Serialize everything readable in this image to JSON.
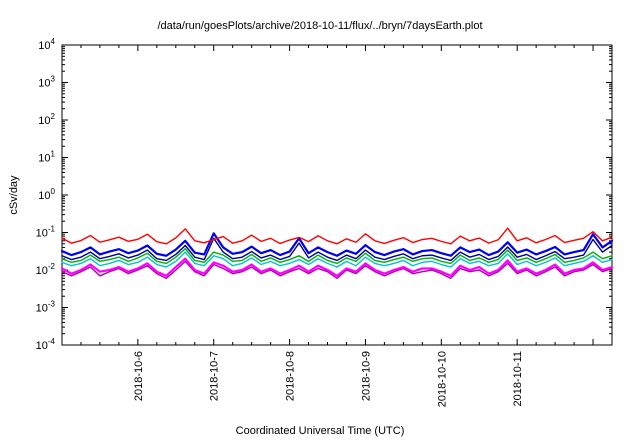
{
  "page": {
    "background": "#ffffff"
  },
  "chart_data": {
    "type": "line",
    "title": "/data/run/goesPlots/archive/2018-10-11/flux/../bryn/7daysEarth.plot",
    "xlabel": "Coordinated Universal Time (UTC)",
    "ylabel": "cSv/day",
    "y_scale": "log10",
    "ylim": [
      0.0001,
      10000
    ],
    "y_tick_exponents": [
      -4,
      -3,
      -2,
      -1,
      0,
      1,
      2,
      3,
      4
    ],
    "grid": false,
    "legend": "none",
    "xlim_days": [
      0,
      7.25
    ],
    "x_ticks": [
      {
        "day": 1,
        "label": "2018-10-6"
      },
      {
        "day": 2,
        "label": "2018-10-7"
      },
      {
        "day": 3,
        "label": "2018-10-8"
      },
      {
        "day": 4,
        "label": "2018-10-9"
      },
      {
        "day": 5,
        "label": "2018-10-10"
      },
      {
        "day": 6,
        "label": "2018-10-11"
      }
    ],
    "x_days": [
      0,
      0.125,
      0.25,
      0.375,
      0.5,
      0.625,
      0.75,
      0.875,
      1,
      1.125,
      1.25,
      1.375,
      1.5,
      1.625,
      1.75,
      1.875,
      2,
      2.125,
      2.25,
      2.375,
      2.5,
      2.625,
      2.75,
      2.875,
      3,
      3.125,
      3.25,
      3.375,
      3.5,
      3.625,
      3.75,
      3.875,
      4,
      4.125,
      4.25,
      4.375,
      4.5,
      4.625,
      4.75,
      4.875,
      5,
      5.125,
      5.25,
      5.375,
      5.5,
      5.625,
      5.75,
      5.875,
      6,
      6.125,
      6.25,
      6.375,
      6.5,
      6.625,
      6.75,
      6.875,
      7,
      7.125,
      7.25
    ],
    "series": [
      {
        "name": "green",
        "color": "#00b000",
        "width": 1.4,
        "values": [
          0.02,
          0.016,
          0.018,
          0.025,
          0.017,
          0.019,
          0.022,
          0.017,
          0.021,
          0.028,
          0.017,
          0.015,
          0.022,
          0.037,
          0.018,
          0.016,
          0.03,
          0.025,
          0.017,
          0.018,
          0.026,
          0.017,
          0.021,
          0.016,
          0.019,
          0.024,
          0.017,
          0.025,
          0.018,
          0.015,
          0.021,
          0.017,
          0.028,
          0.018,
          0.016,
          0.019,
          0.022,
          0.017,
          0.02,
          0.021,
          0.017,
          0.015,
          0.025,
          0.018,
          0.021,
          0.016,
          0.019,
          0.034,
          0.018,
          0.021,
          0.016,
          0.02,
          0.026,
          0.016,
          0.018,
          0.021,
          0.03,
          0.02,
          0.024
        ]
      },
      {
        "name": "cyan",
        "color": "#00c5cd",
        "width": 1.4,
        "values": [
          0.016,
          0.013,
          0.015,
          0.02,
          0.013,
          0.015,
          0.018,
          0.014,
          0.016,
          0.022,
          0.014,
          0.012,
          0.017,
          0.03,
          0.015,
          0.013,
          0.024,
          0.02,
          0.013,
          0.015,
          0.021,
          0.014,
          0.017,
          0.013,
          0.015,
          0.019,
          0.014,
          0.02,
          0.015,
          0.012,
          0.017,
          0.013,
          0.022,
          0.015,
          0.013,
          0.015,
          0.018,
          0.013,
          0.016,
          0.017,
          0.014,
          0.012,
          0.02,
          0.015,
          0.017,
          0.013,
          0.015,
          0.027,
          0.014,
          0.017,
          0.013,
          0.016,
          0.021,
          0.013,
          0.015,
          0.017,
          0.024,
          0.016,
          0.019
        ]
      },
      {
        "name": "dark-blue",
        "color": "#000090",
        "width": 1.4,
        "values": [
          0.024,
          0.019,
          0.022,
          0.03,
          0.02,
          0.023,
          0.027,
          0.021,
          0.025,
          0.034,
          0.02,
          0.018,
          0.026,
          0.045,
          0.022,
          0.019,
          0.07,
          0.03,
          0.02,
          0.022,
          0.031,
          0.021,
          0.025,
          0.019,
          0.023,
          0.052,
          0.021,
          0.03,
          0.022,
          0.018,
          0.025,
          0.02,
          0.034,
          0.022,
          0.019,
          0.023,
          0.027,
          0.02,
          0.024,
          0.025,
          0.021,
          0.018,
          0.03,
          0.022,
          0.026,
          0.019,
          0.023,
          0.041,
          0.022,
          0.026,
          0.019,
          0.024,
          0.031,
          0.02,
          0.022,
          0.025,
          0.065,
          0.03,
          0.045
        ]
      },
      {
        "name": "blue",
        "color": "#0000ee",
        "width": 2.2,
        "values": [
          0.032,
          0.025,
          0.03,
          0.04,
          0.026,
          0.031,
          0.036,
          0.028,
          0.033,
          0.045,
          0.027,
          0.024,
          0.035,
          0.06,
          0.029,
          0.026,
          0.095,
          0.04,
          0.027,
          0.03,
          0.042,
          0.028,
          0.034,
          0.025,
          0.031,
          0.07,
          0.028,
          0.04,
          0.03,
          0.024,
          0.033,
          0.027,
          0.046,
          0.03,
          0.025,
          0.031,
          0.036,
          0.026,
          0.032,
          0.034,
          0.028,
          0.024,
          0.04,
          0.03,
          0.035,
          0.025,
          0.031,
          0.055,
          0.029,
          0.035,
          0.026,
          0.032,
          0.041,
          0.026,
          0.03,
          0.034,
          0.09,
          0.04,
          0.06
        ]
      },
      {
        "name": "violet",
        "color": "#b000b0",
        "width": 1.4,
        "values": [
          0.009,
          0.007,
          0.009,
          0.012,
          0.007,
          0.009,
          0.011,
          0.008,
          0.01,
          0.013,
          0.008,
          0.006,
          0.01,
          0.017,
          0.009,
          0.007,
          0.014,
          0.011,
          0.008,
          0.009,
          0.012,
          0.008,
          0.01,
          0.007,
          0.009,
          0.011,
          0.008,
          0.011,
          0.009,
          0.006,
          0.01,
          0.008,
          0.013,
          0.009,
          0.007,
          0.009,
          0.011,
          0.008,
          0.009,
          0.01,
          0.008,
          0.006,
          0.011,
          0.009,
          0.01,
          0.007,
          0.009,
          0.015,
          0.008,
          0.01,
          0.007,
          0.009,
          0.012,
          0.007,
          0.009,
          0.01,
          0.014,
          0.009,
          0.011
        ]
      },
      {
        "name": "magenta",
        "color": "#ff00ff",
        "width": 2.2,
        "values": [
          0.011,
          0.008,
          0.01,
          0.014,
          0.009,
          0.01,
          0.012,
          0.009,
          0.011,
          0.015,
          0.009,
          0.007,
          0.012,
          0.02,
          0.01,
          0.008,
          0.016,
          0.013,
          0.009,
          0.01,
          0.014,
          0.009,
          0.011,
          0.008,
          0.01,
          0.013,
          0.009,
          0.013,
          0.01,
          0.007,
          0.011,
          0.009,
          0.015,
          0.01,
          0.008,
          0.01,
          0.012,
          0.009,
          0.011,
          0.011,
          0.009,
          0.007,
          0.013,
          0.01,
          0.012,
          0.008,
          0.01,
          0.018,
          0.009,
          0.011,
          0.008,
          0.01,
          0.014,
          0.008,
          0.01,
          0.011,
          0.016,
          0.01,
          0.012
        ]
      },
      {
        "name": "red",
        "color": "#ff0000",
        "width": 1.4,
        "values": [
          0.07,
          0.052,
          0.061,
          0.083,
          0.055,
          0.064,
          0.075,
          0.058,
          0.066,
          0.09,
          0.057,
          0.05,
          0.072,
          0.125,
          0.06,
          0.053,
          0.065,
          0.078,
          0.052,
          0.06,
          0.085,
          0.058,
          0.07,
          0.051,
          0.063,
          0.074,
          0.057,
          0.082,
          0.06,
          0.05,
          0.068,
          0.055,
          0.092,
          0.06,
          0.051,
          0.062,
          0.073,
          0.054,
          0.065,
          0.07,
          0.058,
          0.05,
          0.08,
          0.06,
          0.071,
          0.052,
          0.064,
          0.13,
          0.06,
          0.072,
          0.053,
          0.065,
          0.083,
          0.054,
          0.062,
          0.07,
          0.105,
          0.06,
          0.075
        ]
      }
    ]
  }
}
